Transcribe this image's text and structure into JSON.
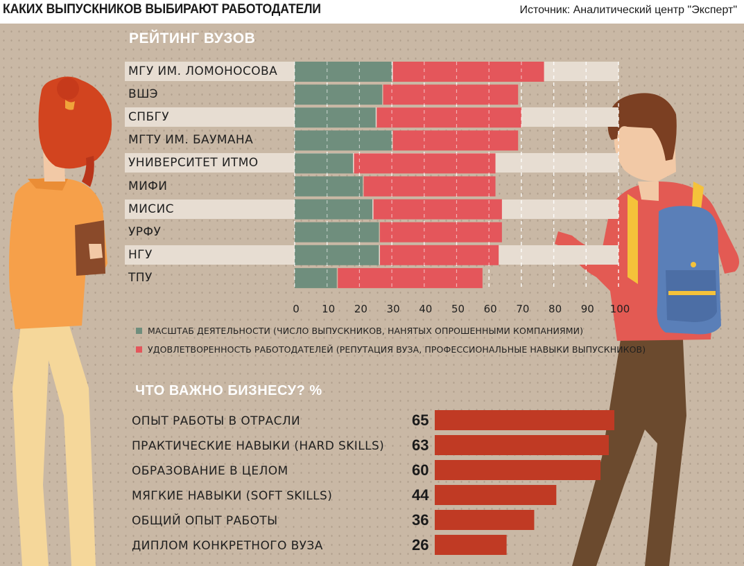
{
  "header": {
    "title": "КАКИХ ВЫПУСКНИКОВ ВЫБИРАЮТ РАБОТОДАТЕЛИ",
    "source": "Источник: Аналитический центр \"Эксперт\""
  },
  "colors": {
    "scale": "#6f8e7d",
    "satisfaction": "#e4565b",
    "business_bar": "#c03a24",
    "row_band": "#e7ddd2",
    "background": "#c9b8a5"
  },
  "chart_data": [
    {
      "type": "bar",
      "orientation": "horizontal",
      "stacked": true,
      "title": "РЕЙТИНГ ВУЗОВ",
      "categories": [
        "МГУ ИМ. ЛОМОНОСОВА",
        "ВШЭ",
        "СПБГУ",
        "МГТУ ИМ. БАУМАНА",
        "УНИВЕРСИТЕТ ИТМО",
        "МИФИ",
        "МИСИС",
        "УРФУ",
        "НГУ",
        "ТПУ"
      ],
      "series": [
        {
          "name": "МАСШТАБ ДЕЯТЕЛЬНОСТИ (ЧИСЛО ВЫПУСКНИКОВ, НАНЯТЫХ ОПРОШЕННЫМИ КОМПАНИЯМИ)",
          "values": [
            30,
            27,
            25,
            30,
            18,
            21,
            24,
            26,
            26,
            13
          ]
        },
        {
          "name": "УДОВЛЕТВОРЕННОСТЬ РАБОТОДАТЕЛЕЙ (РЕПУТАЦИЯ ВУЗА, ПРОФЕССИОНАЛЬНЫЕ НАВЫКИ ВЫПУСКНИКОВ)",
          "values": [
            47,
            42,
            45,
            39,
            44,
            41,
            40,
            38,
            37,
            45
          ]
        }
      ],
      "xlim": [
        0,
        100
      ],
      "xticks": [
        "0",
        "10",
        "20",
        "30",
        "40",
        "50",
        "60",
        "70",
        "80",
        "90",
        "100"
      ],
      "grid": "dashed vertical lines at every 10",
      "legend_position": "bottom-left"
    },
    {
      "type": "bar",
      "orientation": "horizontal",
      "title": "ЧТО ВАЖНО БИЗНЕСУ? %",
      "categories": [
        "ОПЫТ РАБОТЫ В ОТРАСЛИ",
        "ПРАКТИЧЕСКИЕ НАВЫКИ (HARD SKILLS)",
        "ОБРАЗОВАНИЕ В ЦЕЛОМ",
        "МЯГКИЕ НАВЫКИ (SOFT SKILLS)",
        "ОБЩИЙ ОПЫТ РАБОТЫ",
        "ДИПЛОМ КОНКРЕТНОГО ВУЗА"
      ],
      "values": [
        65,
        63,
        60,
        44,
        36,
        26
      ],
      "value_labels": [
        "65",
        "63",
        "60",
        "44",
        "36",
        "26"
      ]
    }
  ]
}
